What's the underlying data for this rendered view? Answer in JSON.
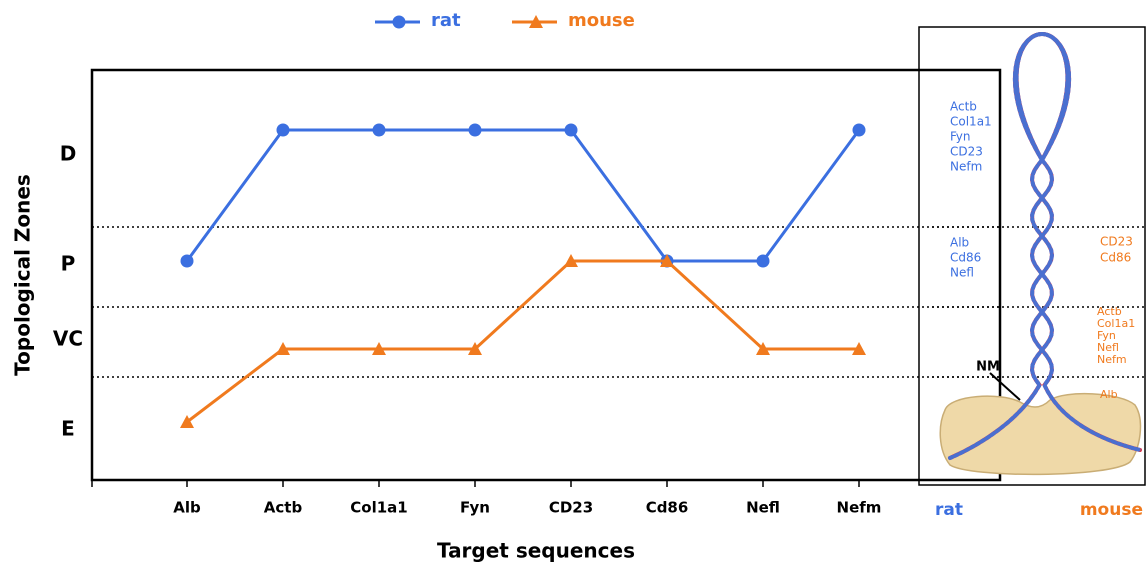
{
  "chart_data": {
    "type": "line",
    "categories": [
      "Alb",
      "Actb",
      "Col1a1",
      "Fyn",
      "CD23",
      "Cd86",
      "Nefl",
      "Nefm"
    ],
    "series": [
      {
        "name": "rat",
        "color": "#3b6fe0",
        "marker": "circle",
        "values": [
          3,
          4,
          4,
          4,
          4,
          3,
          3,
          4
        ]
      },
      {
        "name": "mouse",
        "color": "#f07a1e",
        "marker": "triangle",
        "values": [
          1,
          2,
          2,
          2,
          3,
          3,
          2,
          2
        ]
      }
    ],
    "ylim": [
      1,
      4
    ],
    "yticks": [
      {
        "value": 4,
        "label": "D"
      },
      {
        "value": 3,
        "label": "P"
      },
      {
        "value": 2,
        "label": "VC"
      },
      {
        "value": 1,
        "label": "E"
      }
    ],
    "y_label": "Topological Zones",
    "x_label": "Target sequences",
    "legend": "top"
  },
  "diagram": {
    "rat_zone_d": [
      "Actb",
      "Col1a1",
      "Fyn",
      "CD23",
      "Nefm"
    ],
    "rat_zone_p": [
      "Alb",
      "Cd86",
      "Nefl"
    ],
    "mouse_zone_p": [
      "CD23",
      "Cd86"
    ],
    "mouse_zone_vc": [
      "Actb",
      "Col1a1",
      "Fyn",
      "Nefl",
      "Nefm"
    ],
    "mouse_zone_e": [
      "Alb"
    ],
    "nm_label": "NM",
    "left_label": "rat",
    "right_label": "mouse"
  }
}
